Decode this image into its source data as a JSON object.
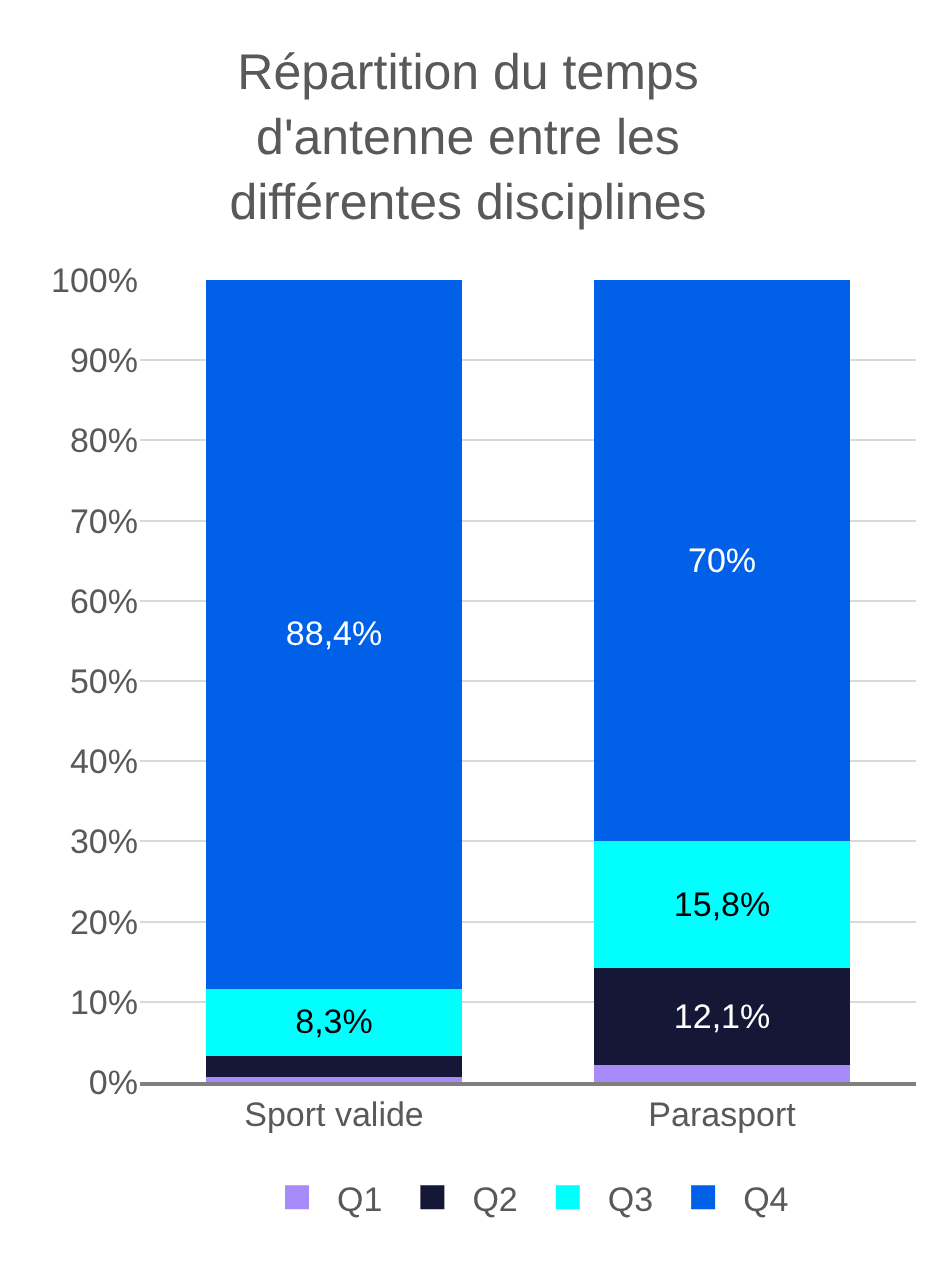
{
  "chart_data": {
    "type": "bar",
    "title": "Répartition du temps d'antenne entre les différentes disciplines",
    "categories": [
      "Sport valide",
      "Parasport"
    ],
    "stacked": true,
    "ylim": [
      0,
      100
    ],
    "yticks": [
      {
        "value": 0,
        "label": "0%"
      },
      {
        "value": 10,
        "label": "10%"
      },
      {
        "value": 20,
        "label": "20%"
      },
      {
        "value": 30,
        "label": "30%"
      },
      {
        "value": 40,
        "label": "40%"
      },
      {
        "value": 50,
        "label": "50%"
      },
      {
        "value": 60,
        "label": "60%"
      },
      {
        "value": 70,
        "label": "70%"
      },
      {
        "value": 80,
        "label": "80%"
      },
      {
        "value": 90,
        "label": "90%"
      },
      {
        "value": 100,
        "label": "100%"
      }
    ],
    "series": [
      {
        "name": "Q1",
        "color": "#a78bfa",
        "values": [
          0.6,
          2.1
        ],
        "value_labels": [
          null,
          null
        ]
      },
      {
        "name": "Q2",
        "color": "#151736",
        "values": [
          2.7,
          12.1
        ],
        "value_labels": [
          null,
          "12,1%"
        ]
      },
      {
        "name": "Q3",
        "color": "#00ffff",
        "values": [
          8.3,
          15.8
        ],
        "value_labels": [
          "8,3%",
          "15,8%"
        ]
      },
      {
        "name": "Q4",
        "color": "#0061e8",
        "values": [
          88.4,
          70
        ],
        "value_labels": [
          "88,4%",
          "70%"
        ]
      }
    ],
    "grid": "y",
    "legend": "bottom"
  }
}
